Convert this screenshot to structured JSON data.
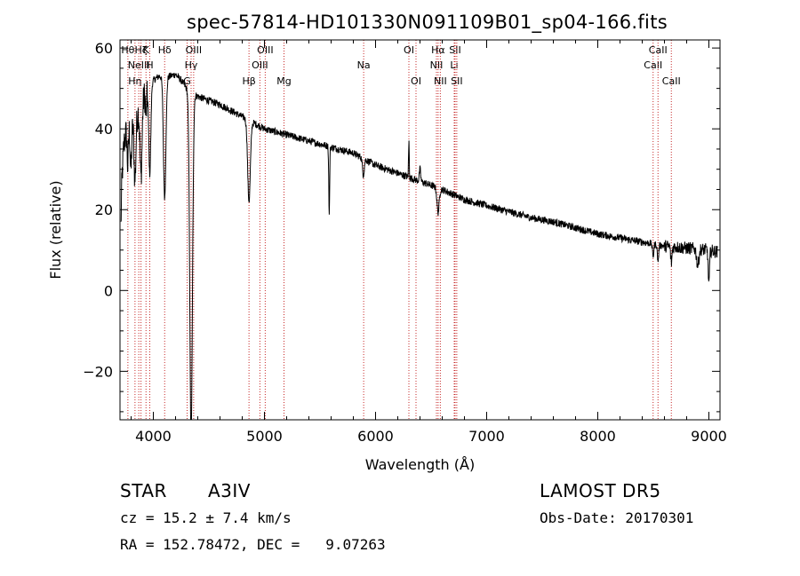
{
  "chart_data": {
    "type": "line",
    "title": "spec-57814-HD101330N091109B01_sp04-166.fits",
    "xlabel": "Wavelength (Å)",
    "ylabel": "Flux (relative)",
    "xlim": [
      3700,
      9100
    ],
    "ylim": [
      -32,
      62
    ],
    "x_ticks": [
      4000,
      5000,
      6000,
      7000,
      8000,
      9000
    ],
    "y_ticks": [
      -20,
      0,
      20,
      40,
      60
    ],
    "grid": false,
    "colors": {
      "spectrum": "#000000",
      "lines": "#c62828"
    },
    "spectrum_anchors": [
      [
        3700,
        6
      ],
      [
        3718,
        28
      ],
      [
        3735,
        36
      ],
      [
        3760,
        40
      ],
      [
        3790,
        42
      ],
      [
        3830,
        41
      ],
      [
        3860,
        44
      ],
      [
        3900,
        47
      ],
      [
        3950,
        50
      ],
      [
        4000,
        52
      ],
      [
        4050,
        53
      ],
      [
        4150,
        53
      ],
      [
        4200,
        53.5
      ],
      [
        4250,
        52
      ],
      [
        4300,
        50
      ],
      [
        4400,
        48
      ],
      [
        4500,
        47
      ],
      [
        4600,
        46
      ],
      [
        4700,
        44.5
      ],
      [
        4800,
        43
      ],
      [
        4900,
        41.5
      ],
      [
        5000,
        40
      ],
      [
        5200,
        38.5
      ],
      [
        5400,
        37
      ],
      [
        5600,
        35.5
      ],
      [
        5800,
        34
      ],
      [
        6000,
        31
      ],
      [
        6200,
        29
      ],
      [
        6400,
        27
      ],
      [
        6600,
        25
      ],
      [
        6800,
        22.5
      ],
      [
        7000,
        21
      ],
      [
        7200,
        19.5
      ],
      [
        7400,
        18
      ],
      [
        7600,
        17
      ],
      [
        7800,
        15.5
      ],
      [
        8000,
        14
      ],
      [
        8200,
        13
      ],
      [
        8400,
        12
      ],
      [
        8600,
        11
      ],
      [
        8800,
        10.5
      ],
      [
        9000,
        10
      ],
      [
        9080,
        9.5
      ]
    ],
    "absorption_features": [
      {
        "center": 3770,
        "width": 6,
        "depth": 10
      },
      {
        "center": 3798,
        "width": 7,
        "depth": 12
      },
      {
        "center": 3835,
        "width": 8,
        "depth": 14
      },
      {
        "center": 3889,
        "width": 9,
        "depth": 18
      },
      {
        "center": 3934,
        "width": 5,
        "depth": 6
      },
      {
        "center": 3968,
        "width": 9,
        "depth": 22
      },
      {
        "center": 4102,
        "width": 11,
        "depth": 30
      },
      {
        "center": 4340,
        "width": 12,
        "depth": 85
      },
      {
        "center": 4861,
        "width": 12,
        "depth": 20
      },
      {
        "center": 5583,
        "width": 4,
        "depth": 17
      },
      {
        "center": 5890,
        "width": 8,
        "depth": 4
      },
      {
        "center": 6563,
        "width": 10,
        "depth": 6
      },
      {
        "center": 8498,
        "width": 6,
        "depth": 3
      },
      {
        "center": 8542,
        "width": 6,
        "depth": 4
      },
      {
        "center": 8662,
        "width": 6,
        "depth": 4
      },
      {
        "center": 8900,
        "width": 10,
        "depth": 4
      },
      {
        "center": 9000,
        "width": 6,
        "depth": 8
      }
    ],
    "emission_features": [
      {
        "center": 6300,
        "width": 3,
        "height": 9
      },
      {
        "center": 6400,
        "width": 6,
        "height": 3
      }
    ],
    "line_markers": [
      {
        "wavelength": 3771,
        "label": "Hθ",
        "row": 0
      },
      {
        "wavelength": 3835,
        "label": "Hη",
        "row": 2
      },
      {
        "wavelength": 3869,
        "label": "NeIII",
        "row": 1
      },
      {
        "wavelength": 3889,
        "label": "Hζ",
        "row": 0
      },
      {
        "wavelength": 3934,
        "label": "K",
        "row": 0
      },
      {
        "wavelength": 3968,
        "label": "H",
        "row": 1
      },
      {
        "wavelength": 4102,
        "label": "Hδ",
        "row": 0
      },
      {
        "wavelength": 4304,
        "label": "G",
        "row": 2
      },
      {
        "wavelength": 4340,
        "label": "Hγ",
        "row": 1
      },
      {
        "wavelength": 4363,
        "label": "OIII",
        "row": 0
      },
      {
        "wavelength": 4861,
        "label": "Hβ",
        "row": 2
      },
      {
        "wavelength": 4959,
        "label": "OIII",
        "row": 1
      },
      {
        "wavelength": 5007,
        "label": "OIII",
        "row": 0
      },
      {
        "wavelength": 5176,
        "label": "Mg",
        "row": 2
      },
      {
        "wavelength": 5893,
        "label": "Na",
        "row": 1
      },
      {
        "wavelength": 6300,
        "label": "OI",
        "row": 0
      },
      {
        "wavelength": 6364,
        "label": "OI",
        "row": 2
      },
      {
        "wavelength": 6548,
        "label": "NII",
        "row": 1
      },
      {
        "wavelength": 6563,
        "label": "Hα",
        "row": 0
      },
      {
        "wavelength": 6583,
        "label": "NII",
        "row": 2
      },
      {
        "wavelength": 6708,
        "label": "Li",
        "row": 1
      },
      {
        "wavelength": 6716,
        "label": "SII",
        "row": 0
      },
      {
        "wavelength": 6731,
        "label": "SII",
        "row": 2
      },
      {
        "wavelength": 8498,
        "label": "CaII",
        "row": 1
      },
      {
        "wavelength": 8542,
        "label": "CaII",
        "row": 0
      },
      {
        "wavelength": 8662,
        "label": "CaII",
        "row": 2
      }
    ]
  },
  "info": {
    "class_label": "STAR",
    "subclass": "A3IV",
    "survey": "LAMOST DR5",
    "redshift": "cz = 15.2 ± 7.4 km/s",
    "obs_date": "Obs-Date: 20170301",
    "coords": "RA = 152.78472, DEC =   9.07263"
  }
}
